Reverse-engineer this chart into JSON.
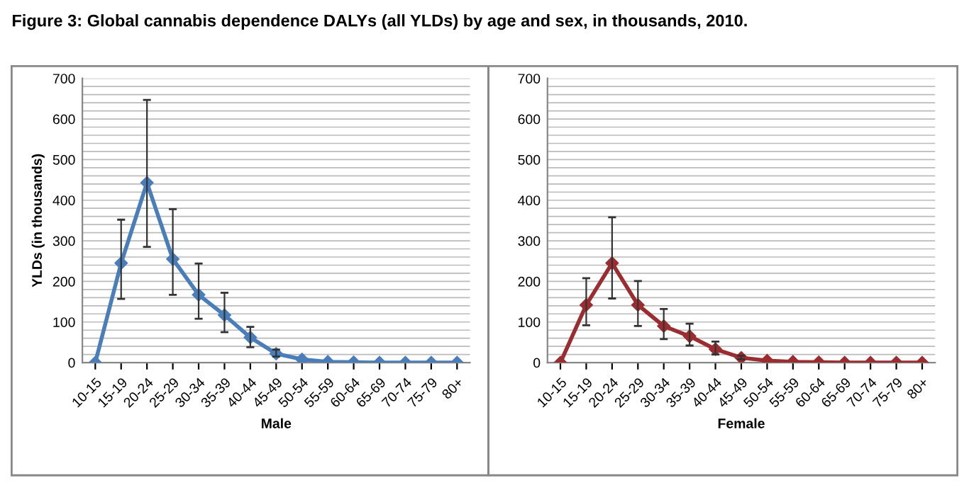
{
  "chart_data": [
    {
      "type": "line",
      "title": "Figure 3: Global cannabis dependence DALYs (all YLDs) by age and sex, in thousands, 2010.",
      "xlabel": "Male",
      "ylabel": "YLDs (in thousands)",
      "categories": [
        "10-15",
        "15-19",
        "20-24",
        "25-29",
        "30-34",
        "35-39",
        "40-44",
        "45-49",
        "50-54",
        "55-59",
        "60-64",
        "65-69",
        "70-74",
        "75-79",
        "80+"
      ],
      "series": [
        {
          "color": "#4a7ebb",
          "values": [
            0,
            245,
            443,
            255,
            167,
            117,
            62,
            22,
            8,
            2,
            1,
            0,
            0,
            0,
            0
          ],
          "errors": [
            null,
            [
              157,
              352
            ],
            [
              285,
              647
            ],
            [
              167,
              378
            ],
            [
              108,
              244
            ],
            [
              75,
              172
            ],
            [
              38,
              88
            ],
            [
              15,
              32
            ],
            null,
            null,
            null,
            null,
            null,
            null,
            null
          ]
        }
      ],
      "ylim": [
        0,
        700
      ],
      "yticks": [
        0,
        {
          "value": 20,
          "label": null
        },
        {
          "value": 40,
          "label": null
        },
        {
          "value": 60,
          "label": null
        },
        {
          "value": 80,
          "label": null
        },
        100,
        {
          "value": 120,
          "label": null
        },
        {
          "value": 140,
          "label": null
        },
        {
          "value": 160,
          "label": null
        },
        {
          "value": 180,
          "label": null
        },
        200,
        {
          "value": 220,
          "label": null
        },
        {
          "value": 240,
          "label": null
        },
        {
          "value": 260,
          "label": null
        },
        {
          "value": 280,
          "label": null
        },
        300,
        {
          "value": 320,
          "label": null
        },
        {
          "value": 340,
          "label": null
        },
        {
          "value": 360,
          "label": null
        },
        {
          "value": 380,
          "label": null
        },
        400,
        {
          "value": 420,
          "label": null
        },
        {
          "value": 440,
          "label": null
        },
        {
          "value": 460,
          "label": null
        },
        {
          "value": 480,
          "label": null
        },
        500,
        {
          "value": 520,
          "label": null
        },
        {
          "value": 540,
          "label": null
        },
        {
          "value": 560,
          "label": null
        },
        {
          "value": 580,
          "label": null
        },
        600,
        {
          "value": 620,
          "label": null
        },
        {
          "value": 640,
          "label": null
        },
        {
          "value": 660,
          "label": null
        },
        {
          "value": 680,
          "label": null
        },
        700
      ],
      "grid": "y",
      "marker": "diamond",
      "line_style": "solid",
      "legend": false
    },
    {
      "type": "line",
      "xlabel": "Female",
      "categories": [
        "10-15",
        "15-19",
        "20-24",
        "25-29",
        "30-34",
        "35-39",
        "40-44",
        "45-49",
        "50-54",
        "55-59",
        "60-64",
        "65-69",
        "70-74",
        "75-79",
        "80+"
      ],
      "series": [
        {
          "color": "#9b2d30",
          "values": [
            0,
            142,
            245,
            142,
            90,
            65,
            33,
            12,
            5,
            2,
            1,
            0,
            0,
            0,
            0
          ],
          "errors": [
            null,
            [
              92,
              208
            ],
            [
              158,
              358
            ],
            [
              90,
              201
            ],
            [
              58,
              132
            ],
            [
              42,
              96
            ],
            [
              20,
              52
            ],
            [
              8,
              17
            ],
            null,
            null,
            null,
            null,
            null,
            null,
            null
          ]
        }
      ],
      "ylim": [
        0,
        700
      ],
      "yticks": [
        0,
        {
          "value": 20,
          "label": null
        },
        {
          "value": 40,
          "label": null
        },
        {
          "value": 60,
          "label": null
        },
        {
          "value": 80,
          "label": null
        },
        100,
        {
          "value": 120,
          "label": null
        },
        {
          "value": 140,
          "label": null
        },
        {
          "value": 160,
          "label": null
        },
        {
          "value": 180,
          "label": null
        },
        200,
        {
          "value": 220,
          "label": null
        },
        {
          "value": 240,
          "label": null
        },
        {
          "value": 260,
          "label": null
        },
        {
          "value": 280,
          "label": null
        },
        300,
        {
          "value": 320,
          "label": null
        },
        {
          "value": 340,
          "label": null
        },
        {
          "value": 360,
          "label": null
        },
        {
          "value": 380,
          "label": null
        },
        400,
        {
          "value": 420,
          "label": null
        },
        {
          "value": 440,
          "label": null
        },
        {
          "value": 460,
          "label": null
        },
        {
          "value": 480,
          "label": null
        },
        500,
        {
          "value": 520,
          "label": null
        },
        {
          "value": 540,
          "label": null
        },
        {
          "value": 560,
          "label": null
        },
        {
          "value": 580,
          "label": null
        },
        600,
        {
          "value": 620,
          "label": null
        },
        {
          "value": 640,
          "label": null
        },
        {
          "value": 660,
          "label": null
        },
        {
          "value": 680,
          "label": null
        },
        700
      ],
      "grid": "y",
      "marker": "diamond",
      "line_style": "solid",
      "legend": false
    }
  ]
}
